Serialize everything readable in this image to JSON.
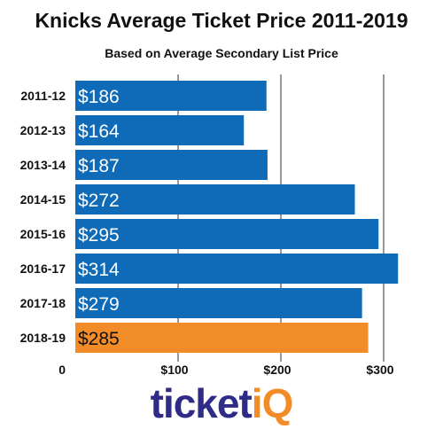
{
  "chart_data": {
    "type": "bar",
    "orientation": "horizontal",
    "title": "Knicks Average Ticket Price 2011-2019",
    "subtitle": "Based on Average Secondary List Price",
    "categories": [
      "2011-12",
      "2012-13",
      "2013-14",
      "2014-15",
      "2015-16",
      "2016-17",
      "2017-18",
      "2018-19"
    ],
    "values": [
      186,
      164,
      187,
      272,
      295,
      314,
      279,
      285
    ],
    "data_labels": [
      "$186",
      "$164",
      "$187",
      "$272",
      "$295",
      "$314",
      "$279",
      "$285"
    ],
    "xlim": [
      0,
      320
    ],
    "x_ticks": [
      0,
      100,
      200,
      300
    ],
    "x_tick_labels": [
      "0",
      "$100",
      "$200",
      "$300"
    ],
    "grid": true,
    "bar_color": "#0f6bb8",
    "highlight_color": "#f28c28",
    "highlight_index": 7
  },
  "logo": {
    "part1": "ticket",
    "part2": "iQ"
  }
}
